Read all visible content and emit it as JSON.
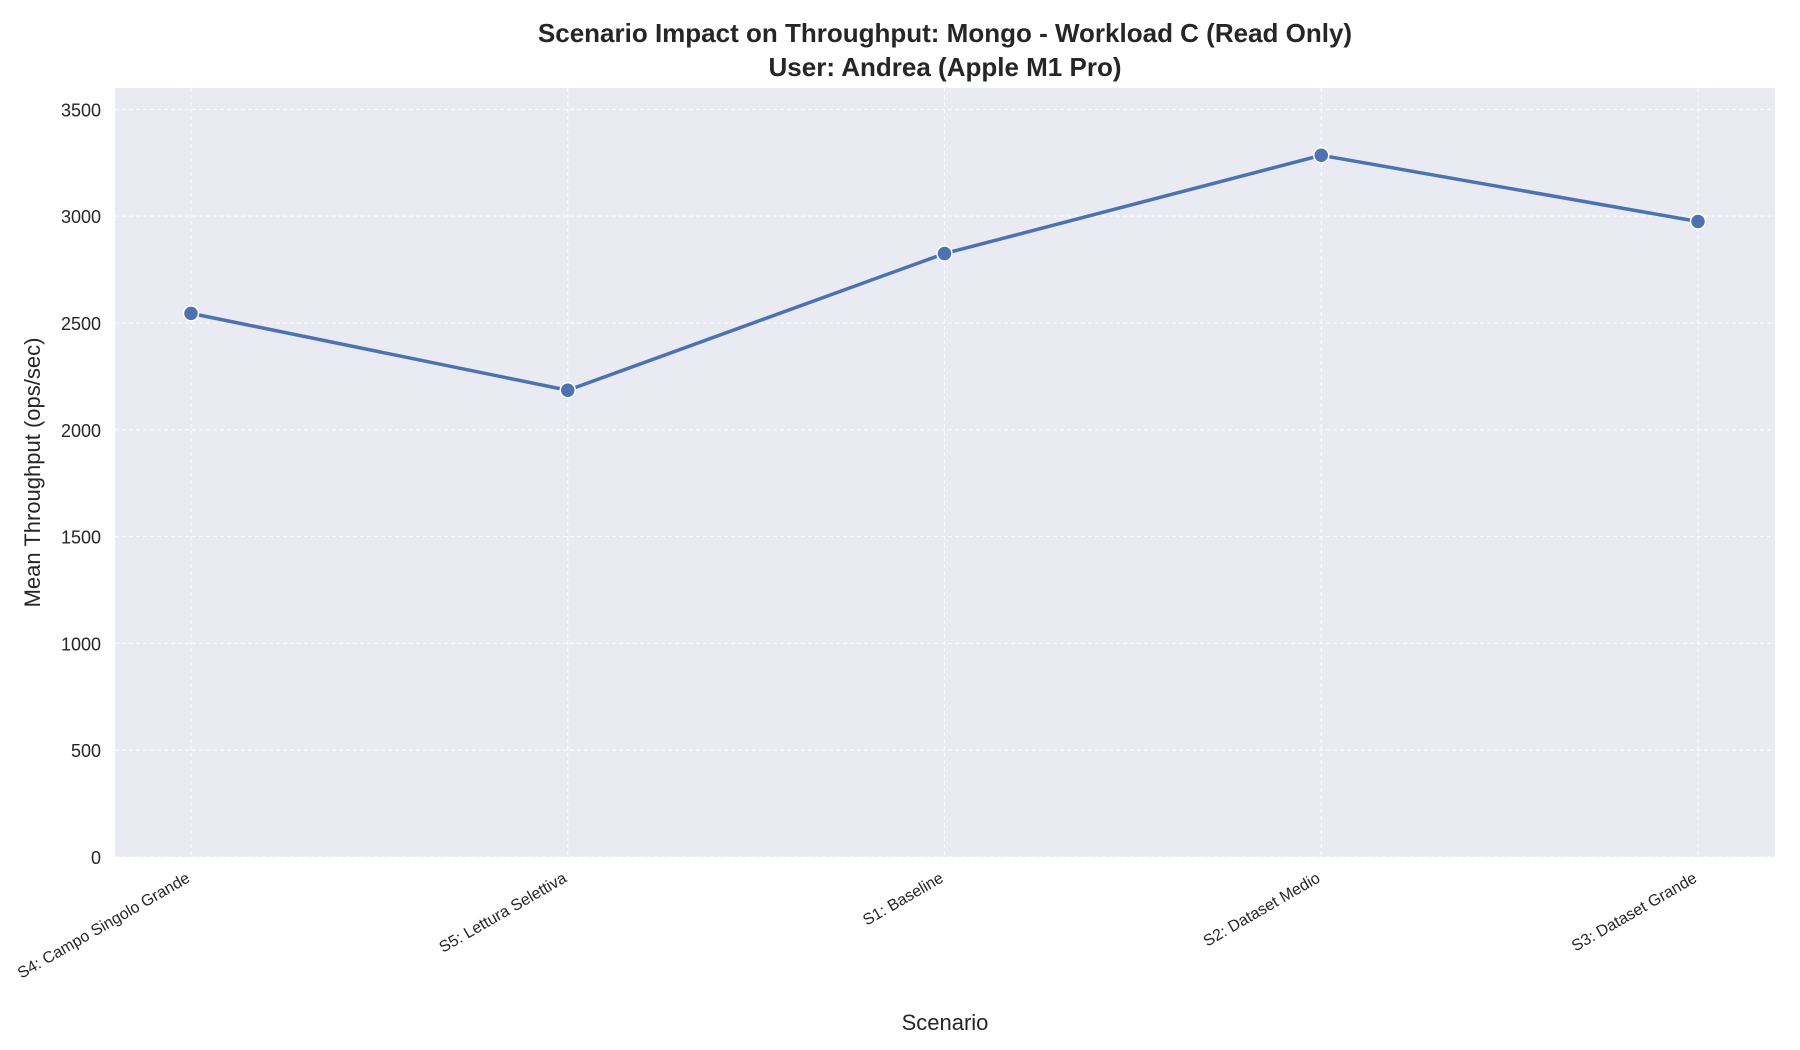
{
  "chart_data": {
    "type": "line",
    "title": "Scenario Impact on Throughput: Mongo - Workload C (Read Only)",
    "subtitle": "User: Andrea (Apple M1 Pro)",
    "xlabel": "Scenario",
    "ylabel": "Mean Throughput (ops/sec)",
    "categories": [
      "S4: Campo Singolo Grande",
      "S5: Lettura Selettiva",
      "S1: Baseline",
      "S2: Dataset Medio",
      "S3: Dataset Grande"
    ],
    "series": [
      {
        "values": [
          2545,
          2185,
          2825,
          3285,
          2975
        ]
      }
    ],
    "ylim": [
      0,
      3600
    ],
    "yticks": [
      0,
      500,
      1000,
      1500,
      2000,
      2500,
      3000,
      3500
    ],
    "grid": true,
    "legend": "none"
  },
  "colors": {
    "plot_background": "#EAEAF2",
    "grid": "#FFFFFF",
    "line": "#4C72B0",
    "marker_edge": "#FFFFFF",
    "text": "#262626"
  }
}
